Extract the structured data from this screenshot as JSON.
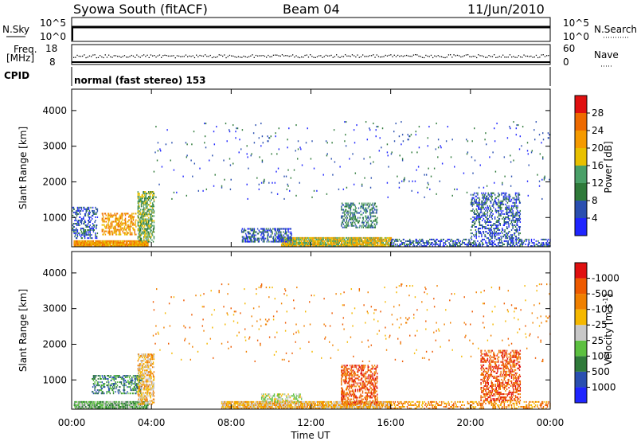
{
  "header": {
    "title": "Syowa South (fitACF)",
    "beam": "Beam 04",
    "date": "11/Jun/2010"
  },
  "top_panels": {
    "nsky_label": "N.Sky",
    "nsky_ticks": [
      "10^5",
      "10^0"
    ],
    "nsearch_label": "N.Search",
    "nsearch_ticks": [
      "10^5",
      "10^0"
    ],
    "freq_label": "Freq.",
    "freq_unit": "[MHz]",
    "freq_ticks": [
      "18",
      "8"
    ],
    "nave_label": "Nave",
    "nave_ticks": [
      "60",
      "0"
    ],
    "cpid_label": "CPID",
    "cpid_text": "normal (fast stereo) 153"
  },
  "chart_data": [
    {
      "type": "heatmap",
      "name": "power-panel",
      "xlabel": "",
      "ylabel": "Slant Range [km]",
      "ylim": [
        180,
        4600
      ],
      "yticks": [
        "1000",
        "2000",
        "3000",
        "4000"
      ],
      "xlim": [
        0,
        24
      ],
      "xticks": [
        "00:00",
        "04:00",
        "08:00",
        "12:00",
        "16:00",
        "20:00",
        "00:00"
      ],
      "colorbar": {
        "label": "Power [dB]",
        "ticks": [
          "4",
          "8",
          "12",
          "16",
          "20",
          "24",
          "28"
        ],
        "colors": [
          "#1f25ff",
          "#2a4fb0",
          "#2f7a3a",
          "#4aa068",
          "#e8c000",
          "#f59a00",
          "#ee6a00",
          "#e01010"
        ]
      },
      "blobs": [
        {
          "t0": 0.1,
          "t1": 3.8,
          "r0": 180,
          "r1": 360,
          "level": 5,
          "d": 0.9
        },
        {
          "t0": 10.5,
          "t1": 16.0,
          "r0": 180,
          "r1": 450,
          "level": 4,
          "d": 0.8
        },
        {
          "t0": 1.5,
          "t1": 3.2,
          "r0": 500,
          "r1": 1100,
          "level": 5,
          "d": 0.4
        },
        {
          "t0": 3.3,
          "t1": 4.1,
          "r0": 300,
          "r1": 1700,
          "level": 3,
          "d": 0.45
        },
        {
          "t0": 0.0,
          "t1": 1.3,
          "r0": 400,
          "r1": 1300,
          "level": 1,
          "d": 0.3
        },
        {
          "t0": 8.5,
          "t1": 11.0,
          "r0": 300,
          "r1": 700,
          "level": 1,
          "d": 0.35
        },
        {
          "t0": 13.5,
          "t1": 15.3,
          "r0": 700,
          "r1": 1400,
          "level": 2,
          "d": 0.35
        },
        {
          "t0": 20.0,
          "t1": 22.5,
          "r0": 400,
          "r1": 1700,
          "level": 1,
          "d": 0.3
        },
        {
          "t0": 16.0,
          "t1": 24.0,
          "r0": 180,
          "r1": 400,
          "level": 1,
          "d": 0.35
        },
        {
          "t0": 4.0,
          "t1": 24.0,
          "r0": 1500,
          "r1": 3700,
          "level": 1,
          "d": 0.012
        }
      ]
    },
    {
      "type": "heatmap",
      "name": "velocity-panel",
      "xlabel": "Time UT",
      "ylabel": "Slant Range [km]",
      "ylim": [
        180,
        4600
      ],
      "yticks": [
        "1000",
        "2000",
        "3000",
        "4000"
      ],
      "xlim": [
        0,
        24
      ],
      "xticks": [
        "00:00",
        "04:00",
        "08:00",
        "12:00",
        "16:00",
        "20:00",
        "00:00"
      ],
      "colorbar": {
        "label": "Velocity [m s^-1]",
        "ticks": [
          "1000",
          "500",
          "100",
          "25",
          "-25",
          "-100",
          "-500",
          "-1000"
        ],
        "colors": [
          "#1f25ff",
          "#2a4fb0",
          "#2f7a3a",
          "#5cc040",
          "#c8c8c8",
          "#f5b800",
          "#f08000",
          "#ee5a00",
          "#e01010"
        ]
      },
      "blobs": [
        {
          "t0": 0.1,
          "t1": 3.8,
          "r0": 180,
          "r1": 400,
          "level": 3,
          "d": 0.8
        },
        {
          "t0": 7.5,
          "t1": 16.0,
          "r0": 180,
          "r1": 380,
          "level": 5,
          "d": 0.75
        },
        {
          "t0": 9.5,
          "t1": 11.5,
          "r0": 350,
          "r1": 600,
          "level": 4,
          "d": 0.4
        },
        {
          "t0": 1.0,
          "t1": 3.5,
          "r0": 600,
          "r1": 1100,
          "level": 2,
          "d": 0.35
        },
        {
          "t0": 3.3,
          "t1": 4.1,
          "r0": 300,
          "r1": 1700,
          "level": 5,
          "d": 0.45
        },
        {
          "t0": 13.5,
          "t1": 15.3,
          "r0": 300,
          "r1": 1400,
          "level": 7,
          "d": 0.4
        },
        {
          "t0": 20.5,
          "t1": 22.5,
          "r0": 400,
          "r1": 1800,
          "level": 7,
          "d": 0.35
        },
        {
          "t0": 16.0,
          "t1": 24.0,
          "r0": 180,
          "r1": 400,
          "level": 6,
          "d": 0.3
        },
        {
          "t0": 4.0,
          "t1": 24.0,
          "r0": 1500,
          "r1": 3700,
          "level": 6,
          "d": 0.012
        }
      ]
    }
  ],
  "x_axis_title": "Time UT"
}
